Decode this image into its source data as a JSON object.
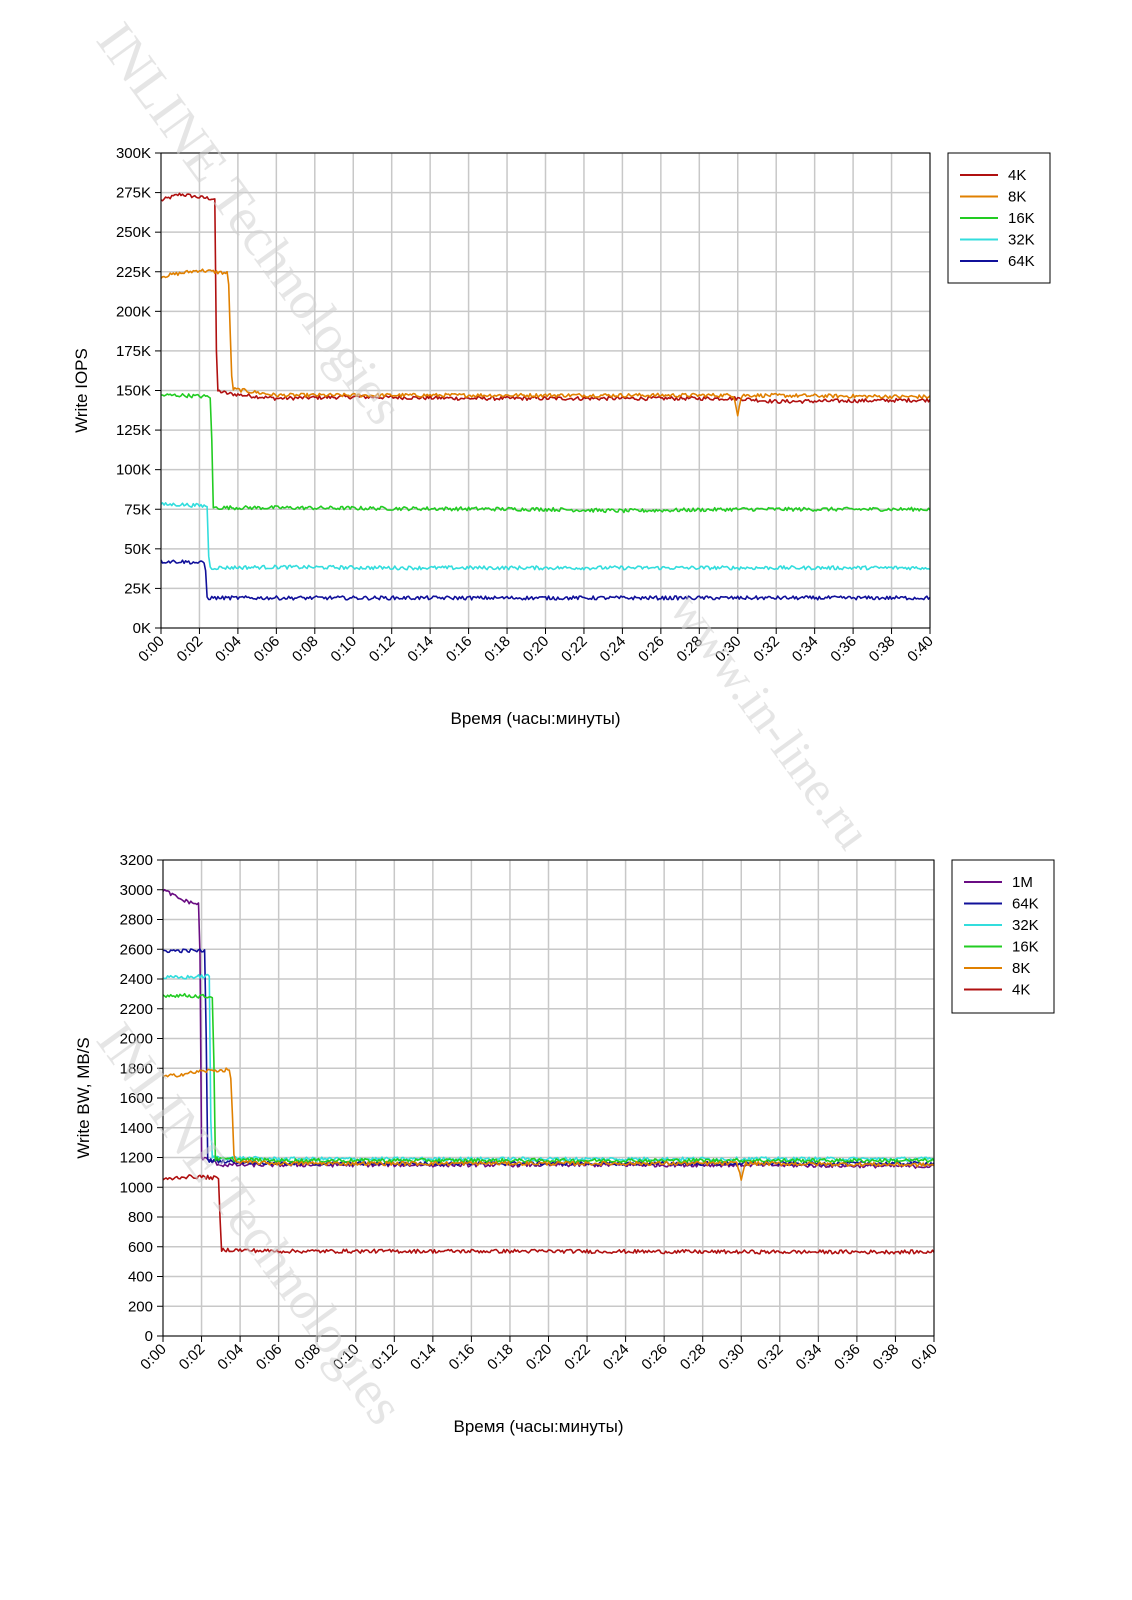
{
  "watermarks": [
    "INLINE Technologies",
    "www.in-line.ru",
    "INLINE Technologies"
  ],
  "chart_data": [
    {
      "type": "line",
      "title": "",
      "xlabel": "Время (часы:минуты)",
      "ylabel": "Write IOPS",
      "x": [
        "0:00",
        "0:02",
        "0:04",
        "0:06",
        "0:08",
        "0:10",
        "0:12",
        "0:14",
        "0:16",
        "0:18",
        "0:20",
        "0:22",
        "0:24",
        "0:26",
        "0:28",
        "0:30",
        "0:32",
        "0:34",
        "0:36",
        "0:38",
        "0:40"
      ],
      "x_minutes_range": [
        0,
        40
      ],
      "ylim": [
        0,
        300000
      ],
      "y_ticks": [
        0,
        25000,
        50000,
        75000,
        100000,
        125000,
        150000,
        175000,
        200000,
        225000,
        250000,
        275000,
        300000
      ],
      "y_tick_labels": [
        "0K",
        "25K",
        "50K",
        "75K",
        "100K",
        "125K",
        "150K",
        "175K",
        "200K",
        "225K",
        "250K",
        "275K",
        "300K"
      ],
      "grid": true,
      "legend_position": "top-right",
      "series": [
        {
          "name": "4K",
          "color": "#b01010",
          "points": [
            [
              0,
              270000
            ],
            [
              1,
              274000
            ],
            [
              2,
              272000
            ],
            [
              2.8,
              271000
            ],
            [
              2.9,
              150000
            ],
            [
              3.5,
              148000
            ],
            [
              6,
              145000
            ],
            [
              10,
              146000
            ],
            [
              16,
              145000
            ],
            [
              24,
              145000
            ],
            [
              30,
              145000
            ],
            [
              32,
              143000
            ],
            [
              40,
              144000
            ]
          ]
        },
        {
          "name": "8K",
          "color": "#e08000",
          "points": [
            [
              0,
              222000
            ],
            [
              1,
              224000
            ],
            [
              2,
              226000
            ],
            [
              3.5,
              224000
            ],
            [
              3.7,
              151000
            ],
            [
              6,
              147000
            ],
            [
              12,
              147000
            ],
            [
              20,
              147000
            ],
            [
              29.8,
              147000
            ],
            [
              30,
              135000
            ],
            [
              30.2,
              147000
            ],
            [
              40,
              146000
            ]
          ]
        },
        {
          "name": "16K",
          "color": "#22cc22",
          "points": [
            [
              0,
              147000
            ],
            [
              1,
              147000
            ],
            [
              2.6,
              146000
            ],
            [
              2.7,
              76000
            ],
            [
              6,
              76000
            ],
            [
              12,
              75500
            ],
            [
              20,
              75000
            ],
            [
              24,
              74000
            ],
            [
              30,
              75000
            ],
            [
              40,
              75000
            ]
          ]
        },
        {
          "name": "32K",
          "color": "#33dddd",
          "points": [
            [
              0,
              78000
            ],
            [
              1,
              78000
            ],
            [
              2.4,
              77000
            ],
            [
              2.5,
              38000
            ],
            [
              6,
              38500
            ],
            [
              12,
              38000
            ],
            [
              20,
              38000
            ],
            [
              30,
              38000
            ],
            [
              40,
              38000
            ]
          ]
        },
        {
          "name": "64K",
          "color": "#10109a",
          "points": [
            [
              0,
              42000
            ],
            [
              1,
              42000
            ],
            [
              2.3,
              41000
            ],
            [
              2.4,
              19000
            ],
            [
              6,
              19000
            ],
            [
              12,
              19000
            ],
            [
              20,
              19000
            ],
            [
              30,
              19000
            ],
            [
              40,
              19000
            ]
          ]
        }
      ]
    },
    {
      "type": "line",
      "title": "",
      "xlabel": "Время (часы:минуты)",
      "ylabel": "Write BW, MB/S",
      "x": [
        "0:00",
        "0:02",
        "0:04",
        "0:06",
        "0:08",
        "0:10",
        "0:12",
        "0:14",
        "0:16",
        "0:18",
        "0:20",
        "0:22",
        "0:24",
        "0:26",
        "0:28",
        "0:30",
        "0:32",
        "0:34",
        "0:36",
        "0:38",
        "0:40"
      ],
      "x_minutes_range": [
        0,
        40
      ],
      "ylim": [
        0,
        3200
      ],
      "y_ticks": [
        0,
        200,
        400,
        600,
        800,
        1000,
        1200,
        1400,
        1600,
        1800,
        2000,
        2200,
        2400,
        2600,
        2800,
        3000,
        3200
      ],
      "y_tick_labels": [
        "0",
        "200",
        "400",
        "600",
        "800",
        "1000",
        "1200",
        "1400",
        "1600",
        "1800",
        "2000",
        "2200",
        "2400",
        "2600",
        "2800",
        "3000",
        "3200"
      ],
      "grid": true,
      "legend_position": "top-right",
      "series": [
        {
          "name": "1M",
          "color": "#6a0d83",
          "points": [
            [
              0,
              3000
            ],
            [
              1,
              2930
            ],
            [
              1.9,
              2900
            ],
            [
              2.0,
              1200
            ],
            [
              3,
              1150
            ],
            [
              6,
              1150
            ],
            [
              12,
              1150
            ],
            [
              20,
              1150
            ],
            [
              30,
              1150
            ],
            [
              40,
              1140
            ]
          ]
        },
        {
          "name": "64K",
          "color": "#10109a",
          "points": [
            [
              0,
              2590
            ],
            [
              1,
              2590
            ],
            [
              2.2,
              2590
            ],
            [
              2.3,
              1180
            ],
            [
              6,
              1160
            ],
            [
              12,
              1160
            ],
            [
              20,
              1160
            ],
            [
              30,
              1160
            ],
            [
              40,
              1160
            ]
          ]
        },
        {
          "name": "32K",
          "color": "#33dddd",
          "points": [
            [
              0,
              2410
            ],
            [
              1,
              2410
            ],
            [
              2.4,
              2420
            ],
            [
              2.5,
              1200
            ],
            [
              6,
              1190
            ],
            [
              12,
              1190
            ],
            [
              20,
              1190
            ],
            [
              30,
              1190
            ],
            [
              40,
              1190
            ]
          ]
        },
        {
          "name": "16K",
          "color": "#22cc22",
          "points": [
            [
              0,
              2290
            ],
            [
              1,
              2290
            ],
            [
              2.6,
              2280
            ],
            [
              2.7,
              1190
            ],
            [
              6,
              1180
            ],
            [
              12,
              1180
            ],
            [
              20,
              1180
            ],
            [
              30,
              1180
            ],
            [
              40,
              1180
            ]
          ]
        },
        {
          "name": "8K",
          "color": "#e08000",
          "points": [
            [
              0,
              1740
            ],
            [
              1,
              1760
            ],
            [
              2,
              1780
            ],
            [
              3.5,
              1790
            ],
            [
              3.7,
              1170
            ],
            [
              6,
              1160
            ],
            [
              12,
              1160
            ],
            [
              20,
              1160
            ],
            [
              29.8,
              1160
            ],
            [
              30,
              1050
            ],
            [
              30.2,
              1160
            ],
            [
              40,
              1150
            ]
          ]
        },
        {
          "name": "4K",
          "color": "#b01010",
          "points": [
            [
              0,
              1050
            ],
            [
              1,
              1070
            ],
            [
              2,
              1070
            ],
            [
              2.9,
              1060
            ],
            [
              3.0,
              580
            ],
            [
              6,
              570
            ],
            [
              12,
              570
            ],
            [
              20,
              570
            ],
            [
              30,
              565
            ],
            [
              40,
              565
            ]
          ]
        }
      ]
    }
  ]
}
